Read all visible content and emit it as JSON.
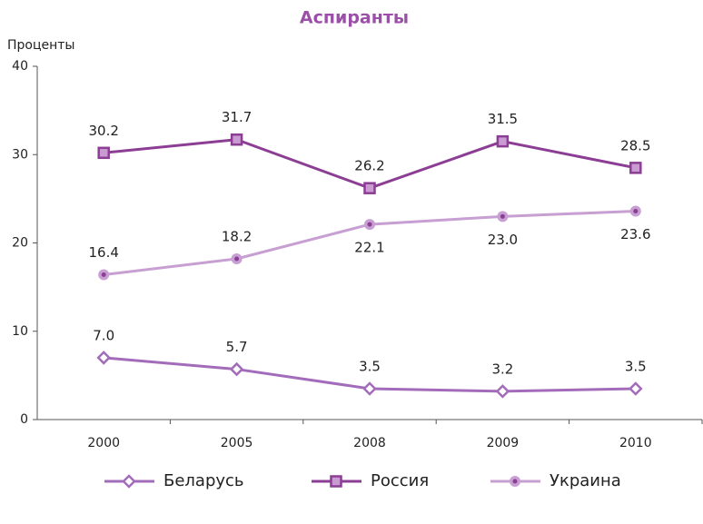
{
  "chart_data": {
    "type": "line",
    "title": "Аспиранты",
    "y_label": "Проценты",
    "categories": [
      "2000",
      "2005",
      "2008",
      "2009",
      "2010"
    ],
    "ylim": [
      0,
      40
    ],
    "yticks": [
      0,
      10,
      20,
      30,
      40
    ],
    "grid": false,
    "legend": "bottom",
    "series": [
      {
        "name": "Беларусь",
        "color": "#a36cbb",
        "marker": "diamond",
        "values": [
          7.0,
          5.7,
          3.5,
          3.2,
          3.5
        ],
        "value_labels": [
          "7.0",
          "5.7",
          "3.5",
          "3.2",
          "3.5"
        ]
      },
      {
        "name": "Россия",
        "color": "#8c3d94",
        "marker": "square",
        "values": [
          30.2,
          31.7,
          26.2,
          31.5,
          28.5
        ],
        "value_labels": [
          "30.2",
          "31.7",
          "26.2",
          "31.5",
          "28.5"
        ]
      },
      {
        "name": "Украина",
        "color": "#c79fd2",
        "marker": "circle",
        "values": [
          16.4,
          18.2,
          22.1,
          23.0,
          23.6
        ],
        "value_labels": [
          "16.4",
          "18.2",
          "22.1",
          "23.0",
          "23.6"
        ]
      }
    ]
  }
}
